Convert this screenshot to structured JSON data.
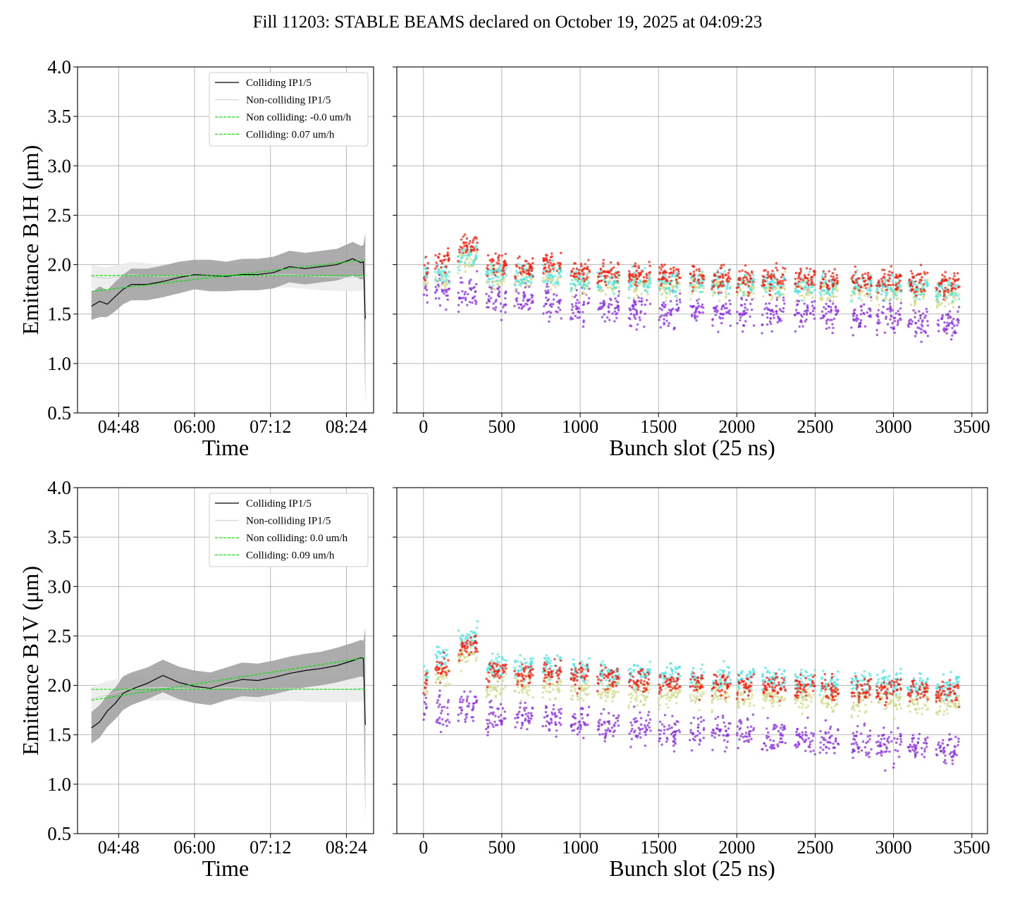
{
  "title": "Fill 11203: STABLE BEAMS declared on October 19, 2025 at 04:09:23",
  "colors": {
    "colliding_line": "#000000",
    "colliding_band": "#9e9e9e",
    "noncolliding_line": "#d3d3d3",
    "noncolliding_band": "#ececec",
    "fit_line": "#00e600",
    "grid": "#b0b0b0",
    "scatter_purple": "#8a2be2",
    "scatter_cyan": "#49e6e6",
    "scatter_khaki": "#d2d98a",
    "scatter_red": "#ff1a0a"
  },
  "chart_data": [
    {
      "id": "b1h-time",
      "type": "line",
      "xlabel": "Time",
      "ylabel": "Emittance B1H (μm)",
      "ylim": [
        0.5,
        4.0
      ],
      "yticks": [
        "0.5",
        "1.0",
        "1.5",
        "2.0",
        "2.5",
        "3.0",
        "3.5",
        "4.0"
      ],
      "xticks": [
        "04:48",
        "06:00",
        "07:12",
        "08:24"
      ],
      "xlim_hours": [
        4.15,
        8.83
      ],
      "xtick_hours": [
        4.8,
        6.0,
        7.2,
        8.4
      ],
      "grid": true,
      "legend_position": "upper-right",
      "legend": [
        "Colliding IP1/5",
        "Non-colliding IP1/5",
        "Non colliding: -0.0 um/h",
        "Colliding: 0.07 um/h"
      ],
      "series": [
        {
          "name": "Colliding IP1/5",
          "x_hours": [
            4.37,
            4.5,
            4.62,
            4.75,
            4.87,
            5.0,
            5.25,
            5.5,
            5.75,
            6.0,
            6.25,
            6.5,
            6.75,
            7.0,
            7.25,
            7.5,
            7.75,
            8.0,
            8.25,
            8.5,
            8.63,
            8.67,
            8.7
          ],
          "values": [
            1.58,
            1.63,
            1.6,
            1.68,
            1.75,
            1.8,
            1.8,
            1.83,
            1.87,
            1.9,
            1.89,
            1.88,
            1.9,
            1.9,
            1.92,
            1.98,
            1.96,
            1.98,
            2.0,
            2.06,
            2.02,
            2.03,
            1.45
          ],
          "band_lower": [
            1.44,
            1.47,
            1.47,
            1.53,
            1.6,
            1.64,
            1.64,
            1.67,
            1.71,
            1.75,
            1.73,
            1.73,
            1.74,
            1.74,
            1.76,
            1.82,
            1.8,
            1.82,
            1.84,
            1.89,
            1.85,
            1.86,
            0.58
          ],
          "band_upper": [
            1.72,
            1.78,
            1.74,
            1.83,
            1.9,
            1.96,
            1.96,
            1.99,
            2.03,
            2.05,
            2.05,
            2.03,
            2.06,
            2.06,
            2.08,
            2.14,
            2.12,
            2.14,
            2.16,
            2.23,
            2.19,
            2.2,
            2.32
          ]
        },
        {
          "name": "Non-colliding IP1/5",
          "x_hours": [
            4.37,
            4.6,
            5.0,
            5.5,
            6.0,
            6.5,
            7.0,
            7.5,
            8.0,
            8.5,
            8.67,
            8.7
          ],
          "values": [
            1.88,
            1.86,
            1.9,
            1.88,
            1.9,
            1.88,
            1.89,
            1.9,
            1.88,
            1.87,
            1.88,
            1.45
          ],
          "band_lower": [
            1.76,
            1.72,
            1.78,
            1.75,
            1.78,
            1.75,
            1.76,
            1.77,
            1.74,
            1.73,
            1.74,
            0.6
          ],
          "band_upper": [
            2.0,
            1.97,
            2.03,
            2.0,
            2.01,
            2.0,
            2.02,
            2.02,
            2.0,
            1.99,
            2.0,
            2.1
          ]
        },
        {
          "name": "Non colliding: -0.0 um/h",
          "style": "dashed",
          "x_hours": [
            4.37,
            8.7
          ],
          "values": [
            1.89,
            1.89
          ]
        },
        {
          "name": "Colliding: 0.07 um/h",
          "style": "dashed",
          "x_hours": [
            4.37,
            8.7
          ],
          "values": [
            1.73,
            2.05
          ]
        }
      ]
    },
    {
      "id": "b1h-bunch",
      "type": "scatter",
      "xlabel": "Bunch slot (25 ns)",
      "ylim": [
        0.5,
        4.0
      ],
      "xlim": [
        -170,
        3600
      ],
      "xticks": [
        0,
        500,
        1000,
        1500,
        2000,
        2500,
        3000,
        3500
      ],
      "grid": true,
      "trains": [
        {
          "start": 0,
          "end": 30,
          "levels": [
            1.74,
            1.86,
            1.9,
            1.97
          ]
        },
        {
          "start": 75,
          "end": 165,
          "levels": [
            1.73,
            1.87,
            1.92,
            2.05
          ]
        },
        {
          "start": 220,
          "end": 345,
          "levels": [
            1.73,
            2.05,
            2.1,
            2.2
          ]
        },
        {
          "start": 400,
          "end": 530,
          "levels": [
            1.65,
            1.88,
            1.92,
            2.0
          ]
        },
        {
          "start": 580,
          "end": 700,
          "levels": [
            1.63,
            1.85,
            1.88,
            1.98
          ]
        },
        {
          "start": 760,
          "end": 880,
          "levels": [
            1.62,
            1.86,
            1.9,
            2.02
          ]
        },
        {
          "start": 940,
          "end": 1060,
          "levels": [
            1.58,
            1.82,
            1.86,
            1.93
          ]
        },
        {
          "start": 1110,
          "end": 1250,
          "levels": [
            1.56,
            1.8,
            1.84,
            1.92
          ]
        },
        {
          "start": 1310,
          "end": 1450,
          "levels": [
            1.54,
            1.79,
            1.84,
            1.9
          ]
        },
        {
          "start": 1500,
          "end": 1640,
          "levels": [
            1.53,
            1.78,
            1.83,
            1.9
          ]
        },
        {
          "start": 1700,
          "end": 1790,
          "levels": [
            1.53,
            1.77,
            1.82,
            1.87
          ]
        },
        {
          "start": 1840,
          "end": 1960,
          "levels": [
            1.52,
            1.77,
            1.82,
            1.88
          ]
        },
        {
          "start": 2000,
          "end": 2110,
          "levels": [
            1.51,
            1.76,
            1.81,
            1.87
          ]
        },
        {
          "start": 2160,
          "end": 2310,
          "levels": [
            1.51,
            1.76,
            1.81,
            1.88
          ]
        },
        {
          "start": 2370,
          "end": 2500,
          "levels": [
            1.5,
            1.75,
            1.8,
            1.86
          ]
        },
        {
          "start": 2530,
          "end": 2650,
          "levels": [
            1.52,
            1.74,
            1.79,
            1.84
          ]
        },
        {
          "start": 2730,
          "end": 2860,
          "levels": [
            1.48,
            1.74,
            1.79,
            1.84
          ]
        },
        {
          "start": 2890,
          "end": 3050,
          "levels": [
            1.47,
            1.73,
            1.78,
            1.84
          ]
        },
        {
          "start": 3090,
          "end": 3220,
          "levels": [
            1.45,
            1.72,
            1.77,
            1.83
          ]
        },
        {
          "start": 3270,
          "end": 3420,
          "levels": [
            1.42,
            1.68,
            1.74,
            1.82
          ]
        }
      ]
    },
    {
      "id": "b1v-time",
      "type": "line",
      "xlabel": "Time",
      "ylabel": "Emittance B1V (μm)",
      "ylim": [
        0.5,
        4.0
      ],
      "yticks": [
        "0.5",
        "1.0",
        "1.5",
        "2.0",
        "2.5",
        "3.0",
        "3.5",
        "4.0"
      ],
      "xticks": [
        "04:48",
        "06:00",
        "07:12",
        "08:24"
      ],
      "xlim_hours": [
        4.15,
        8.83
      ],
      "xtick_hours": [
        4.8,
        6.0,
        7.2,
        8.4
      ],
      "grid": true,
      "legend_position": "upper-right",
      "legend": [
        "Colliding IP1/5",
        "Non-colliding IP1/5",
        "Non colliding: 0.0 um/h",
        "Colliding: 0.09 um/h"
      ],
      "series": [
        {
          "name": "Colliding IP1/5",
          "x_hours": [
            4.37,
            4.5,
            4.62,
            4.75,
            4.87,
            5.0,
            5.25,
            5.5,
            5.75,
            6.0,
            6.25,
            6.5,
            6.75,
            7.0,
            7.25,
            7.5,
            7.75,
            8.0,
            8.25,
            8.5,
            8.63,
            8.67,
            8.7
          ],
          "values": [
            1.57,
            1.63,
            1.74,
            1.82,
            1.92,
            1.96,
            2.02,
            2.1,
            2.03,
            1.99,
            1.97,
            2.02,
            2.06,
            2.05,
            2.08,
            2.12,
            2.15,
            2.17,
            2.2,
            2.25,
            2.28,
            2.27,
            1.6
          ],
          "band_lower": [
            1.41,
            1.47,
            1.58,
            1.66,
            1.75,
            1.8,
            1.86,
            1.93,
            1.86,
            1.82,
            1.8,
            1.85,
            1.89,
            1.88,
            1.91,
            1.95,
            1.98,
            2.0,
            2.03,
            2.07,
            2.09,
            2.08,
            0.64
          ],
          "band_upper": [
            1.73,
            1.8,
            1.9,
            1.98,
            2.09,
            2.13,
            2.18,
            2.26,
            2.19,
            2.15,
            2.13,
            2.18,
            2.23,
            2.22,
            2.25,
            2.29,
            2.32,
            2.34,
            2.38,
            2.43,
            2.46,
            2.45,
            2.58
          ]
        },
        {
          "name": "Non-colliding IP1/5",
          "x_hours": [
            4.37,
            4.6,
            5.0,
            5.5,
            6.0,
            6.5,
            7.0,
            7.5,
            8.0,
            8.5,
            8.67,
            8.7
          ],
          "values": [
            1.86,
            1.9,
            1.97,
            1.98,
            1.96,
            1.98,
            1.96,
            1.97,
            1.96,
            1.96,
            1.97,
            1.6
          ],
          "band_lower": [
            1.74,
            1.76,
            1.84,
            1.85,
            1.83,
            1.85,
            1.83,
            1.84,
            1.83,
            1.83,
            1.84,
            0.7
          ],
          "band_upper": [
            1.98,
            2.04,
            2.1,
            2.11,
            2.09,
            2.11,
            2.09,
            2.1,
            2.09,
            2.09,
            2.1,
            2.2
          ]
        },
        {
          "name": "Non colliding: 0.0 um/h",
          "style": "dashed",
          "x_hours": [
            4.37,
            8.7
          ],
          "values": [
            1.96,
            1.96
          ]
        },
        {
          "name": "Colliding: 0.09 um/h",
          "style": "dashed",
          "x_hours": [
            4.37,
            8.7
          ],
          "values": [
            1.85,
            2.28
          ]
        }
      ]
    },
    {
      "id": "b1v-bunch",
      "type": "scatter",
      "xlabel": "Bunch slot (25 ns)",
      "ylim": [
        0.5,
        4.0
      ],
      "xlim": [
        -170,
        3600
      ],
      "xticks": [
        0,
        500,
        1000,
        1500,
        2000,
        2500,
        3000,
        3500
      ],
      "grid": true,
      "trains": [
        {
          "start": 0,
          "end": 30,
          "levels": [
            1.8,
            1.98,
            2.12,
            2.06
          ]
        },
        {
          "start": 75,
          "end": 165,
          "levels": [
            1.72,
            2.1,
            2.3,
            2.18
          ]
        },
        {
          "start": 220,
          "end": 345,
          "levels": [
            1.8,
            2.3,
            2.48,
            2.4
          ]
        },
        {
          "start": 400,
          "end": 530,
          "levels": [
            1.7,
            2.0,
            2.2,
            2.15
          ]
        },
        {
          "start": 580,
          "end": 700,
          "levels": [
            1.68,
            1.98,
            2.18,
            2.12
          ]
        },
        {
          "start": 760,
          "end": 880,
          "levels": [
            1.66,
            1.99,
            2.2,
            2.14
          ]
        },
        {
          "start": 940,
          "end": 1060,
          "levels": [
            1.62,
            1.96,
            2.16,
            2.1
          ]
        },
        {
          "start": 1110,
          "end": 1250,
          "levels": [
            1.6,
            1.94,
            2.13,
            2.08
          ]
        },
        {
          "start": 1310,
          "end": 1450,
          "levels": [
            1.58,
            1.92,
            2.12,
            2.06
          ]
        },
        {
          "start": 1500,
          "end": 1640,
          "levels": [
            1.55,
            1.91,
            2.1,
            2.03
          ]
        },
        {
          "start": 1700,
          "end": 1790,
          "levels": [
            1.54,
            1.9,
            2.08,
            2.02
          ]
        },
        {
          "start": 1840,
          "end": 1960,
          "levels": [
            1.53,
            1.9,
            2.08,
            2.02
          ]
        },
        {
          "start": 2000,
          "end": 2110,
          "levels": [
            1.52,
            1.89,
            2.06,
            2.0
          ]
        },
        {
          "start": 2160,
          "end": 2310,
          "levels": [
            1.5,
            1.88,
            2.06,
            1.99
          ]
        },
        {
          "start": 2370,
          "end": 2500,
          "levels": [
            1.47,
            1.87,
            2.05,
            1.98
          ]
        },
        {
          "start": 2530,
          "end": 2650,
          "levels": [
            1.46,
            1.86,
            2.02,
            1.96
          ]
        },
        {
          "start": 2730,
          "end": 2860,
          "levels": [
            1.41,
            1.85,
            2.03,
            1.97
          ]
        },
        {
          "start": 2890,
          "end": 3050,
          "levels": [
            1.4,
            1.84,
            2.02,
            1.96
          ]
        },
        {
          "start": 3090,
          "end": 3220,
          "levels": [
            1.38,
            1.84,
            2.0,
            1.95
          ]
        },
        {
          "start": 3270,
          "end": 3420,
          "levels": [
            1.35,
            1.82,
            1.98,
            1.93
          ]
        }
      ]
    }
  ]
}
